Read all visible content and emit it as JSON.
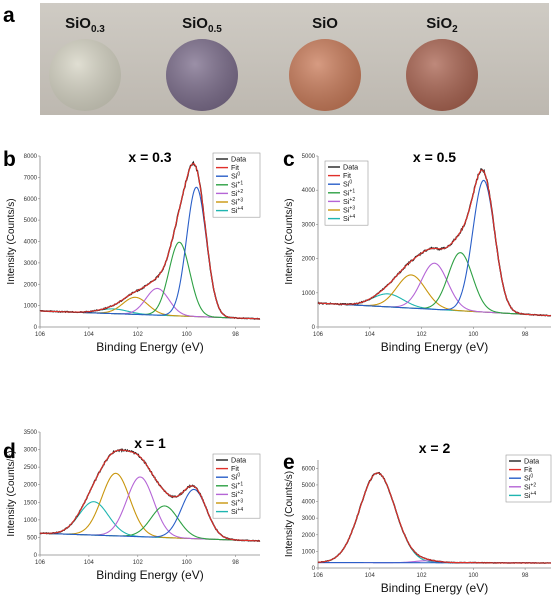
{
  "panel_a": {
    "label": "a",
    "samples": [
      {
        "base": "SiO",
        "sub": "0.3",
        "color": "#d6d4c4"
      },
      {
        "base": "SiO",
        "sub": "0.5",
        "color": "#7a6b8a"
      },
      {
        "base": "SiO",
        "sub": "",
        "color": "#c97a58"
      },
      {
        "base": "SiO",
        "sub": "2",
        "color": "#a9624f"
      }
    ]
  },
  "colors": {
    "Data": "#222222",
    "Fit": "#e0302a",
    "Si0": "#2a5fc8",
    "Si1": "#2ea044",
    "Si2": "#b565d6",
    "Si3": "#c9960e",
    "Si4": "#1fb5b0",
    "background": "#777777"
  },
  "chart_data": [
    {
      "panel": "b",
      "type": "line",
      "title": "x = 0.3",
      "xlabel": "Binding Energy (eV)",
      "ylabel": "Intensity (Counts/s)",
      "xlim": [
        106,
        97
      ],
      "ylim": [
        0,
        8000
      ],
      "x_reversed": true,
      "xticks": [
        106,
        104,
        102,
        100,
        98
      ],
      "yticks": [
        0,
        1000,
        2000,
        3000,
        4000,
        5000,
        6000,
        7000,
        8000
      ],
      "legend": {
        "placement": "top-right",
        "entries": [
          {
            "key": "Data",
            "label": "Data"
          },
          {
            "key": "Fit",
            "label": "Fit"
          },
          {
            "key": "Si0",
            "base": "Si",
            "sup": "0"
          },
          {
            "key": "Si1",
            "base": "Si",
            "sup": "+1"
          },
          {
            "key": "Si2",
            "base": "Si",
            "sup": "+2"
          },
          {
            "key": "Si3",
            "base": "Si",
            "sup": "+3"
          },
          {
            "key": "Si4",
            "base": "Si",
            "sup": "+4"
          }
        ]
      },
      "background": [
        [
          106,
          750
        ],
        [
          97,
          380
        ]
      ],
      "peaks": [
        {
          "name": "Si0",
          "center": 99.6,
          "height": 6050,
          "fwhm": 0.95
        },
        {
          "name": "Si1",
          "center": 100.3,
          "height": 3450,
          "fwhm": 1.0
        },
        {
          "name": "Si2",
          "center": 101.2,
          "height": 1250,
          "fwhm": 1.1
        },
        {
          "name": "Si3",
          "center": 102.1,
          "height": 800,
          "fwhm": 1.2
        },
        {
          "name": "Si4",
          "center": 103.0,
          "height": 220,
          "fwhm": 1.4
        }
      ]
    },
    {
      "panel": "c",
      "type": "line",
      "title": "x = 0.5",
      "xlabel": "Binding Energy (eV)",
      "ylabel": "Intensity (Counts/s)",
      "xlim": [
        106,
        97
      ],
      "ylim": [
        0,
        5000
      ],
      "x_reversed": true,
      "xticks": [
        106,
        104,
        102,
        100,
        98
      ],
      "yticks": [
        0,
        1000,
        2000,
        3000,
        4000,
        5000
      ],
      "legend": {
        "placement": "top-left",
        "entries": [
          {
            "key": "Data",
            "label": "Data"
          },
          {
            "key": "Fit",
            "label": "Fit"
          },
          {
            "key": "Si0",
            "base": "Si",
            "sup": "0"
          },
          {
            "key": "Si1",
            "base": "Si",
            "sup": "+1"
          },
          {
            "key": "Si2",
            "base": "Si",
            "sup": "+2"
          },
          {
            "key": "Si3",
            "base": "Si",
            "sup": "+3"
          },
          {
            "key": "Si4",
            "base": "Si",
            "sup": "+4"
          }
        ]
      },
      "background": [
        [
          106,
          700
        ],
        [
          97,
          330
        ]
      ],
      "peaks": [
        {
          "name": "Si0",
          "center": 99.6,
          "height": 3850,
          "fwhm": 1.0
        },
        {
          "name": "Si1",
          "center": 100.5,
          "height": 1700,
          "fwhm": 1.1
        },
        {
          "name": "Si2",
          "center": 101.5,
          "height": 1350,
          "fwhm": 1.2
        },
        {
          "name": "Si3",
          "center": 102.4,
          "height": 970,
          "fwhm": 1.3
        },
        {
          "name": "Si4",
          "center": 103.3,
          "height": 380,
          "fwhm": 1.4
        }
      ]
    },
    {
      "panel": "d",
      "type": "line",
      "title": "x = 1",
      "xlabel": "Binding Energy (eV)",
      "ylabel": "Intensity (Counts/s)",
      "xlim": [
        106,
        97
      ],
      "ylim": [
        0,
        3500
      ],
      "x_reversed": true,
      "xticks": [
        106,
        104,
        102,
        100,
        98
      ],
      "yticks": [
        0,
        500,
        1000,
        1500,
        2000,
        2500,
        3000,
        3500
      ],
      "legend": {
        "placement": "top-right",
        "entries": [
          {
            "key": "Data",
            "label": "Data"
          },
          {
            "key": "Fit",
            "label": "Fit"
          },
          {
            "key": "Si0",
            "base": "Si",
            "sup": "0"
          },
          {
            "key": "Si1",
            "base": "Si",
            "sup": "+1"
          },
          {
            "key": "Si2",
            "base": "Si",
            "sup": "+2"
          },
          {
            "key": "Si3",
            "base": "Si",
            "sup": "+3"
          },
          {
            "key": "Si4",
            "base": "Si",
            "sup": "+4"
          }
        ]
      },
      "background": [
        [
          106,
          620
        ],
        [
          97,
          400
        ]
      ],
      "peaks": [
        {
          "name": "Si0",
          "center": 99.7,
          "height": 1400,
          "fwhm": 1.2
        },
        {
          "name": "Si1",
          "center": 100.9,
          "height": 900,
          "fwhm": 1.3
        },
        {
          "name": "Si2",
          "center": 101.9,
          "height": 1700,
          "fwhm": 1.3
        },
        {
          "name": "Si3",
          "center": 102.9,
          "height": 1780,
          "fwhm": 1.35
        },
        {
          "name": "Si4",
          "center": 103.8,
          "height": 950,
          "fwhm": 1.4
        }
      ]
    },
    {
      "panel": "e",
      "type": "line",
      "title": "x = 2",
      "xlabel": "Binding Energy (eV)",
      "ylabel": "Intensity (Counts/s)",
      "xlim": [
        106,
        97
      ],
      "ylim": [
        0,
        6500
      ],
      "x_reversed": true,
      "xticks": [
        106,
        104,
        102,
        100,
        98
      ],
      "yticks": [
        0,
        1000,
        2000,
        3000,
        4000,
        5000,
        6000
      ],
      "legend": {
        "placement": "top-right",
        "entries": [
          {
            "key": "Data",
            "label": "Data"
          },
          {
            "key": "Fit",
            "label": "Fit"
          },
          {
            "key": "Si0",
            "base": "Si",
            "sup": "0"
          },
          {
            "key": "Si2",
            "base": "Si",
            "sup": "+2"
          },
          {
            "key": "Si4",
            "base": "Si",
            "sup": "+4"
          }
        ]
      },
      "background": [
        [
          106,
          330
        ],
        [
          97,
          300
        ]
      ],
      "peaks": [
        {
          "name": "Si0",
          "center": 100.2,
          "height": 15,
          "fwhm": 1.0
        },
        {
          "name": "Si2",
          "center": 101.8,
          "height": 120,
          "fwhm": 1.1
        },
        {
          "name": "Si4",
          "center": 103.7,
          "height": 5400,
          "fwhm": 1.6
        }
      ]
    }
  ]
}
